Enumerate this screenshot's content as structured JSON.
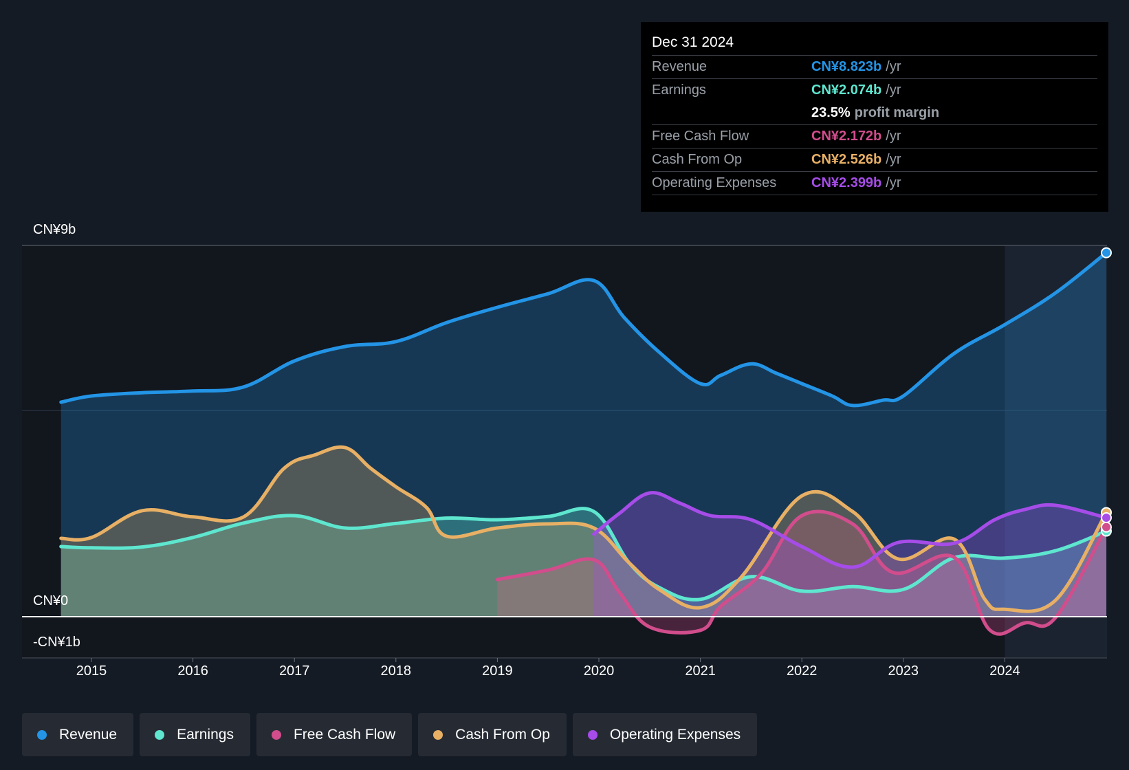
{
  "chart_data": {
    "type": "area",
    "y_axis": {
      "top_label": "CN¥9b",
      "zero_label": "CN¥0",
      "bottom_label": "-CN¥1b",
      "ylim": [
        -1,
        9
      ],
      "unit": "CN¥ billions"
    },
    "x_axis": {
      "ticks": [
        "2015",
        "2016",
        "2017",
        "2018",
        "2019",
        "2020",
        "2021",
        "2022",
        "2023",
        "2024"
      ],
      "xlim": [
        2014.55,
        2025.0
      ]
    },
    "highlight_from": 2024.0,
    "series": [
      {
        "name": "Revenue",
        "color": "#2394e6",
        "points": [
          [
            2014.7,
            5.2
          ],
          [
            2015.0,
            5.35
          ],
          [
            2015.5,
            5.43
          ],
          [
            2016.0,
            5.47
          ],
          [
            2016.5,
            5.57
          ],
          [
            2017.0,
            6.2
          ],
          [
            2017.5,
            6.55
          ],
          [
            2018.0,
            6.67
          ],
          [
            2018.5,
            7.13
          ],
          [
            2019.0,
            7.5
          ],
          [
            2019.5,
            7.83
          ],
          [
            2019.95,
            8.15
          ],
          [
            2020.25,
            7.25
          ],
          [
            2020.6,
            6.4
          ],
          [
            2021.0,
            5.65
          ],
          [
            2021.2,
            5.85
          ],
          [
            2021.5,
            6.13
          ],
          [
            2021.75,
            5.9
          ],
          [
            2022.0,
            5.65
          ],
          [
            2022.3,
            5.35
          ],
          [
            2022.5,
            5.12
          ],
          [
            2022.8,
            5.25
          ],
          [
            2023.0,
            5.35
          ],
          [
            2023.5,
            6.38
          ],
          [
            2024.0,
            7.08
          ],
          [
            2024.5,
            7.85
          ],
          [
            2025.0,
            8.823
          ]
        ]
      },
      {
        "name": "Earnings",
        "color": "#5ee6cf",
        "points": [
          [
            2014.7,
            1.7
          ],
          [
            2015.0,
            1.67
          ],
          [
            2015.5,
            1.69
          ],
          [
            2016.0,
            1.92
          ],
          [
            2016.5,
            2.27
          ],
          [
            2017.0,
            2.45
          ],
          [
            2017.5,
            2.15
          ],
          [
            2018.0,
            2.26
          ],
          [
            2018.5,
            2.39
          ],
          [
            2019.0,
            2.35
          ],
          [
            2019.5,
            2.43
          ],
          [
            2019.95,
            2.55
          ],
          [
            2020.3,
            1.3
          ],
          [
            2020.6,
            0.7
          ],
          [
            2021.0,
            0.42
          ],
          [
            2021.5,
            0.97
          ],
          [
            2022.0,
            0.62
          ],
          [
            2022.5,
            0.73
          ],
          [
            2023.0,
            0.66
          ],
          [
            2023.5,
            1.43
          ],
          [
            2024.0,
            1.42
          ],
          [
            2024.5,
            1.6
          ],
          [
            2025.0,
            2.074
          ]
        ]
      },
      {
        "name": "Free Cash Flow",
        "color": "#d14d8c",
        "points": [
          [
            2019.0,
            0.9
          ],
          [
            2019.5,
            1.13
          ],
          [
            2019.95,
            1.38
          ],
          [
            2020.2,
            0.6
          ],
          [
            2020.5,
            -0.25
          ],
          [
            2021.0,
            -0.33
          ],
          [
            2021.2,
            0.25
          ],
          [
            2021.6,
            1.05
          ],
          [
            2022.0,
            2.45
          ],
          [
            2022.5,
            2.25
          ],
          [
            2022.9,
            1.07
          ],
          [
            2023.5,
            1.44
          ],
          [
            2023.85,
            -0.32
          ],
          [
            2024.2,
            -0.15
          ],
          [
            2024.5,
            -0.02
          ],
          [
            2025.0,
            2.172
          ]
        ]
      },
      {
        "name": "Cash From Op",
        "color": "#e8b065",
        "points": [
          [
            2014.7,
            1.9
          ],
          [
            2015.0,
            1.92
          ],
          [
            2015.5,
            2.57
          ],
          [
            2016.0,
            2.42
          ],
          [
            2016.5,
            2.42
          ],
          [
            2016.9,
            3.6
          ],
          [
            2017.2,
            3.92
          ],
          [
            2017.5,
            4.1
          ],
          [
            2017.75,
            3.6
          ],
          [
            2018.0,
            3.15
          ],
          [
            2018.3,
            2.65
          ],
          [
            2018.5,
            1.95
          ],
          [
            2019.0,
            2.15
          ],
          [
            2019.5,
            2.25
          ],
          [
            2019.95,
            2.15
          ],
          [
            2020.3,
            1.3
          ],
          [
            2020.6,
            0.65
          ],
          [
            2021.0,
            0.22
          ],
          [
            2021.4,
            0.95
          ],
          [
            2022.0,
            2.93
          ],
          [
            2022.5,
            2.55
          ],
          [
            2022.95,
            1.4
          ],
          [
            2023.5,
            1.88
          ],
          [
            2023.8,
            0.43
          ],
          [
            2024.0,
            0.18
          ],
          [
            2024.5,
            0.4
          ],
          [
            2025.0,
            2.526
          ]
        ]
      },
      {
        "name": "Operating Expenses",
        "color": "#a64ce8",
        "points": [
          [
            2019.95,
            2.0
          ],
          [
            2020.2,
            2.5
          ],
          [
            2020.5,
            3.0
          ],
          [
            2020.8,
            2.75
          ],
          [
            2021.1,
            2.45
          ],
          [
            2021.5,
            2.35
          ],
          [
            2022.0,
            1.7
          ],
          [
            2022.5,
            1.2
          ],
          [
            2022.95,
            1.8
          ],
          [
            2023.5,
            1.78
          ],
          [
            2023.9,
            2.35
          ],
          [
            2024.2,
            2.6
          ],
          [
            2024.5,
            2.7
          ],
          [
            2025.0,
            2.399
          ]
        ]
      }
    ]
  },
  "tooltip": {
    "date": "Dec 31 2024",
    "rows": [
      {
        "label": "Revenue",
        "value": "CN¥8.823b",
        "unit": "/yr",
        "color": "#2394e6"
      },
      {
        "label": "Earnings",
        "value": "CN¥2.074b",
        "unit": "/yr",
        "color": "#5ee6cf"
      },
      {
        "label": "Free Cash Flow",
        "value": "CN¥2.172b",
        "unit": "/yr",
        "color": "#d14d8c"
      },
      {
        "label": "Cash From Op",
        "value": "CN¥2.526b",
        "unit": "/yr",
        "color": "#e8b065"
      },
      {
        "label": "Operating Expenses",
        "value": "CN¥2.399b",
        "unit": "/yr",
        "color": "#a64ce8"
      }
    ],
    "margin_value": "23.5%",
    "margin_text": "profit margin"
  },
  "legend": [
    {
      "label": "Revenue",
      "color": "#2394e6"
    },
    {
      "label": "Earnings",
      "color": "#5ee6cf"
    },
    {
      "label": "Free Cash Flow",
      "color": "#d14d8c"
    },
    {
      "label": "Cash From Op",
      "color": "#e8b065"
    },
    {
      "label": "Operating Expenses",
      "color": "#a64ce8"
    }
  ]
}
